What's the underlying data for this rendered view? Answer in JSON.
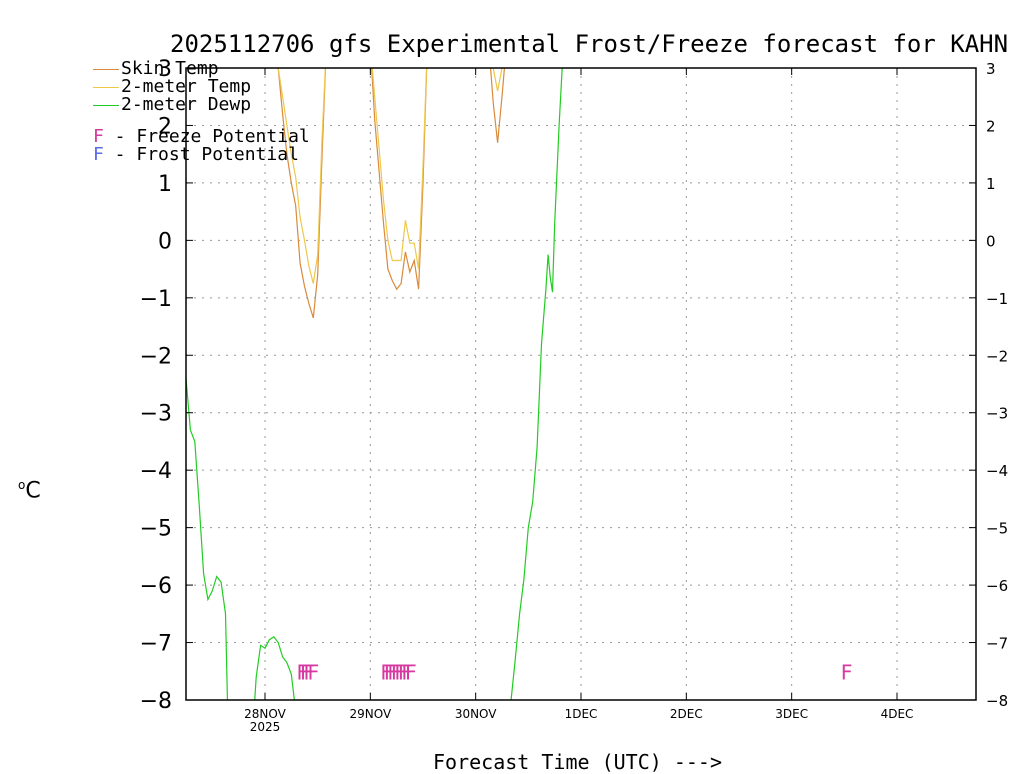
{
  "chart_data": {
    "type": "line",
    "title": "2025112706 gfs Experimental Frost/Freeze forecast for KAHN",
    "ylabel_unit": "C",
    "ylabel_degree": "o",
    "xlabel": "Forecast Time (UTC) --->",
    "ylim": [
      -8,
      3
    ],
    "yticks": [
      -8,
      -7,
      -6,
      -5,
      -4,
      -3,
      -2,
      -1,
      0,
      1,
      2,
      3
    ],
    "xlim_hours": [
      0,
      180
    ],
    "xticks": [
      {
        "hour": 18,
        "label": "28NOV",
        "sublabel": "2025"
      },
      {
        "hour": 42,
        "label": "29NOV",
        "sublabel": ""
      },
      {
        "hour": 66,
        "label": "30NOV",
        "sublabel": ""
      },
      {
        "hour": 90,
        "label": "1DEC",
        "sublabel": ""
      },
      {
        "hour": 114,
        "label": "2DEC",
        "sublabel": ""
      },
      {
        "hour": 138,
        "label": "3DEC",
        "sublabel": ""
      },
      {
        "hour": 162,
        "label": "4DEC",
        "sublabel": ""
      }
    ],
    "grid": true,
    "series": [
      {
        "name": "Skin Temp",
        "color": "#d98a3a",
        "segments": [
          [
            [
              20,
              3.4
            ],
            [
              21,
              3
            ],
            [
              22,
              2.2
            ],
            [
              23,
              1.5
            ],
            [
              24,
              1.0
            ],
            [
              25,
              0.6
            ],
            [
              26,
              -0.4
            ],
            [
              27,
              -0.8
            ],
            [
              28,
              -1.1
            ],
            [
              29,
              -1.35
            ],
            [
              30,
              -0.6
            ],
            [
              31,
              1.5
            ],
            [
              32,
              3.4
            ]
          ],
          [
            [
              42,
              3.4
            ],
            [
              43,
              2.1
            ],
            [
              44,
              1.2
            ],
            [
              45,
              0.3
            ],
            [
              46,
              -0.5
            ],
            [
              47,
              -0.7
            ],
            [
              48,
              -0.85
            ],
            [
              49,
              -0.75
            ],
            [
              50,
              -0.2
            ],
            [
              51,
              -0.55
            ],
            [
              52,
              -0.35
            ],
            [
              53,
              -0.85
            ],
            [
              54,
              1.0
            ],
            [
              55,
              3.4
            ]
          ],
          [
            [
              69,
              3.4
            ],
            [
              70,
              2.4
            ],
            [
              71,
              1.7
            ],
            [
              72,
              2.5
            ],
            [
              73,
              3.4
            ]
          ]
        ]
      },
      {
        "name": "2-meter Temp",
        "color": "#eec84a",
        "segments": [
          [
            [
              20,
              3.4
            ],
            [
              21,
              3
            ],
            [
              22,
              2.5
            ],
            [
              23,
              2.0
            ],
            [
              24,
              1.5
            ],
            [
              25,
              1.1
            ],
            [
              26,
              0.4
            ],
            [
              27,
              0
            ],
            [
              28,
              -0.45
            ],
            [
              29,
              -0.75
            ],
            [
              30,
              -0.25
            ],
            [
              31,
              1.8
            ],
            [
              32,
              3.4
            ]
          ],
          [
            [
              42,
              3.4
            ],
            [
              43,
              2.5
            ],
            [
              44,
              1.6
            ],
            [
              45,
              0.7
            ],
            [
              46,
              0
            ],
            [
              47,
              -0.35
            ],
            [
              48,
              -0.35
            ],
            [
              49,
              -0.35
            ],
            [
              50,
              0.35
            ],
            [
              51,
              -0.05
            ],
            [
              52,
              -0.05
            ],
            [
              53,
              -0.5
            ],
            [
              54,
              1.3
            ],
            [
              55,
              3.4
            ]
          ],
          [
            [
              69,
              3.4
            ],
            [
              70,
              3.0
            ],
            [
              71,
              2.6
            ],
            [
              72,
              3.0
            ],
            [
              73,
              3.4
            ]
          ]
        ]
      },
      {
        "name": "2-meter Dewp",
        "color": "#22cc22",
        "segments": [
          [
            [
              0,
              -2.4
            ],
            [
              1,
              -3.3
            ],
            [
              2,
              -3.5
            ],
            [
              3,
              -4.6
            ],
            [
              4,
              -5.8
            ],
            [
              5,
              -6.25
            ],
            [
              6,
              -6.1
            ],
            [
              7,
              -5.85
            ],
            [
              8,
              -5.95
            ],
            [
              9,
              -6.5
            ],
            [
              9.5,
              -8.2
            ]
          ],
          [
            [
              15.5,
              -8.2
            ],
            [
              16,
              -7.6
            ],
            [
              17,
              -7.05
            ],
            [
              18,
              -7.1
            ],
            [
              19,
              -6.95
            ],
            [
              20,
              -6.9
            ],
            [
              21,
              -7.0
            ],
            [
              22,
              -7.25
            ],
            [
              23,
              -7.35
            ],
            [
              24,
              -7.55
            ],
            [
              25,
              -8.2
            ]
          ],
          [
            [
              73.8,
              -8.2
            ],
            [
              75,
              -7.3
            ],
            [
              76,
              -6.5
            ],
            [
              77,
              -5.9
            ],
            [
              78,
              -5.0
            ],
            [
              79,
              -4.55
            ],
            [
              80,
              -3.6
            ],
            [
              81,
              -1.8
            ],
            [
              82,
              -0.85
            ],
            [
              82.5,
              -0.25
            ],
            [
              83,
              -0.65
            ],
            [
              83.5,
              -0.9
            ],
            [
              84,
              0.3
            ],
            [
              85,
              2.0
            ],
            [
              86,
              3.4
            ]
          ]
        ]
      }
    ],
    "potential_legend": [
      {
        "letter": "F",
        "text": " - Freeze Potential",
        "color": "#d63aa0"
      },
      {
        "letter": "F",
        "text": " - Frost Potential",
        "color": "#5a6ae8"
      }
    ],
    "freeze_markers": [
      {
        "hour": 26.5,
        "label": "F"
      },
      {
        "hour": 27.3,
        "label": "F"
      },
      {
        "hour": 28.1,
        "label": "F"
      },
      {
        "hour": 29.0,
        "label": "F"
      },
      {
        "hour": 45.6,
        "label": "F"
      },
      {
        "hour": 46.4,
        "label": "F"
      },
      {
        "hour": 47.2,
        "label": "F"
      },
      {
        "hour": 48.0,
        "label": "F"
      },
      {
        "hour": 48.8,
        "label": "F"
      },
      {
        "hour": 49.6,
        "label": "F"
      },
      {
        "hour": 50.4,
        "label": "F"
      },
      {
        "hour": 51.2,
        "label": "F"
      },
      {
        "hour": 150.5,
        "label": "F"
      }
    ],
    "marker_value": -7.5
  }
}
